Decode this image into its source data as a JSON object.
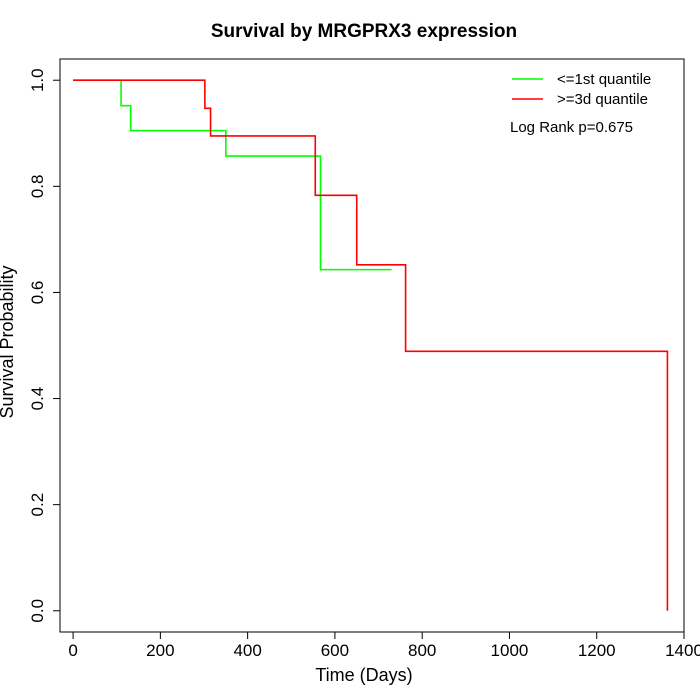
{
  "chart_data": {
    "type": "line",
    "title": "Survival by MRGPRX3 expression",
    "xlabel": "Time (Days)",
    "ylabel": "Survival Probability",
    "xlim": [
      -30,
      1400
    ],
    "ylim": [
      -0.04,
      1.04
    ],
    "x_ticks": [
      0,
      200,
      400,
      600,
      800,
      1000,
      1200,
      1400
    ],
    "y_ticks": [
      0.0,
      0.2,
      0.4,
      0.6,
      0.8,
      1.0
    ],
    "x_tick_labels": [
      "0",
      "200",
      "400",
      "600",
      "800",
      "1000",
      "1200",
      "1400"
    ],
    "y_tick_labels": [
      "0.0",
      "0.2",
      "0.4",
      "0.6",
      "0.8",
      "1.0"
    ],
    "grid": false,
    "legend_position": "top-right",
    "annotation": "Log Rank p=0.675",
    "series": [
      {
        "name": "<=1st quantile",
        "color": "#00ff00",
        "step": true,
        "x": [
          0,
          110,
          132,
          350,
          567,
          730
        ],
        "y": [
          1.0,
          0.952,
          0.905,
          0.857,
          0.643,
          0.643
        ]
      },
      {
        "name": ">=3d quantile",
        "color": "#ff0000",
        "step": true,
        "x": [
          0,
          302,
          315,
          555,
          650,
          762,
          1362
        ],
        "y": [
          1.0,
          0.947,
          0.895,
          0.783,
          0.652,
          0.489,
          0.0
        ]
      }
    ]
  }
}
